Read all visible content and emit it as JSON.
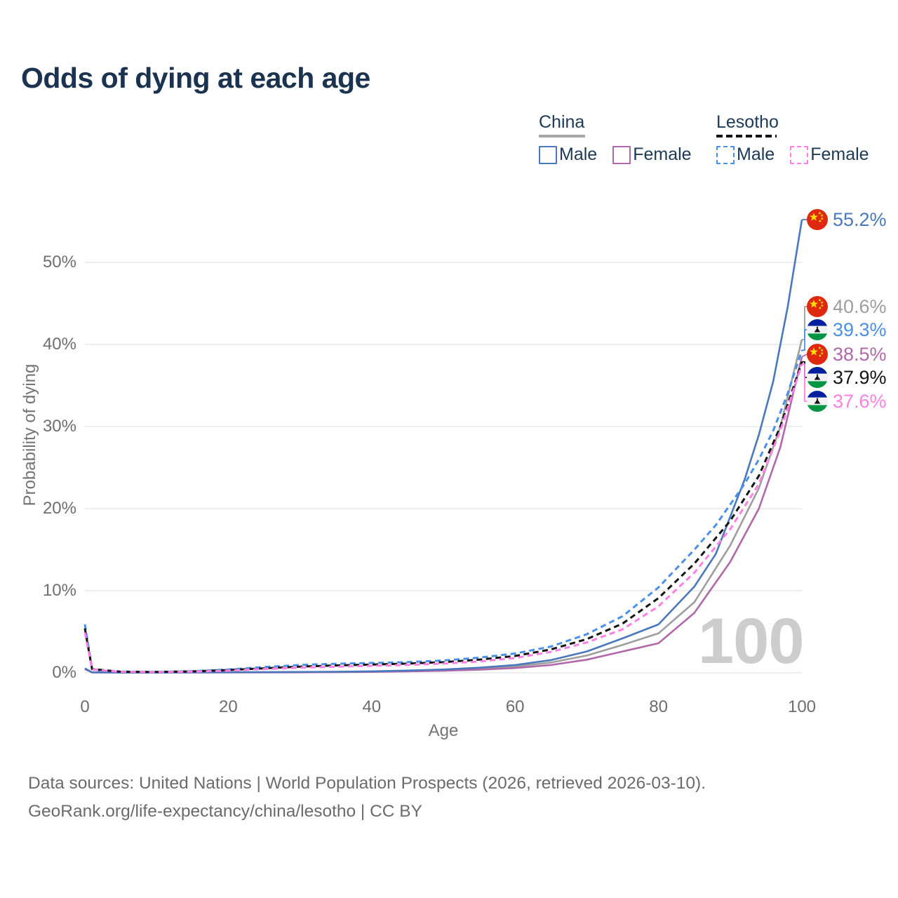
{
  "title": "Odds of dying at each age",
  "legend": {
    "groups": [
      {
        "label": "China",
        "line_style": "solid",
        "line_color": "#a8a8a8",
        "items": [
          {
            "label": "Male",
            "color": "#4a78bc"
          },
          {
            "label": "Female",
            "color": "#b168ab"
          }
        ]
      },
      {
        "label": "Lesotho",
        "line_style": "dashed",
        "line_color": "#141414",
        "items": [
          {
            "label": "Male",
            "color": "#4a90e8"
          },
          {
            "label": "Female",
            "color": "#ff80e5"
          }
        ]
      }
    ]
  },
  "axes": {
    "x": {
      "label": "Age",
      "ticks": [
        "0",
        "20",
        "40",
        "60",
        "80",
        "100"
      ]
    },
    "y": {
      "label": "Probability of dying",
      "ticks": [
        "0%",
        "10%",
        "20%",
        "30%",
        "40%",
        "50%"
      ]
    }
  },
  "watermark": "100",
  "end_labels": [
    {
      "value": "55.2%",
      "pct": 55.2,
      "flag": "china",
      "color": "#4a78bc"
    },
    {
      "value": "40.6%",
      "pct": 40.6,
      "flag": "china",
      "color": "#9e9e9e"
    },
    {
      "value": "39.3%",
      "pct": 39.3,
      "flag": "lesotho",
      "color": "#4a90e8"
    },
    {
      "value": "38.5%",
      "pct": 38.5,
      "flag": "china",
      "color": "#b168ab"
    },
    {
      "value": "37.9%",
      "pct": 37.9,
      "flag": "lesotho",
      "color": "#141414"
    },
    {
      "value": "37.6%",
      "pct": 37.6,
      "flag": "lesotho",
      "color": "#ff80e5"
    }
  ],
  "footer": {
    "line1": "Data sources: United Nations | World Population Prospects (2026, retrieved 2026-03-10).",
    "line2": "GeoRank.org/life-expectancy/china/lesotho | CC BY"
  },
  "chart_data": {
    "type": "line",
    "title": "Odds of dying at each age",
    "xlabel": "Age",
    "ylabel": "Probability of dying",
    "xlim": [
      0,
      100
    ],
    "ylim": [
      0,
      57
    ],
    "xticks": [
      0,
      20,
      40,
      60,
      80,
      100
    ],
    "yticks": [
      0,
      10,
      20,
      30,
      40,
      50
    ],
    "grid": "horizontal",
    "legend_position": "top-right",
    "unit": "%",
    "series": [
      {
        "name": "China Both sexes",
        "country": "China",
        "sex": "both",
        "color": "#9e9e9e",
        "dash": false,
        "end_value": 40.6,
        "points": [
          [
            0,
            0.5
          ],
          [
            1,
            0.05
          ],
          [
            5,
            0.03
          ],
          [
            10,
            0.03
          ],
          [
            15,
            0.04
          ],
          [
            20,
            0.06
          ],
          [
            25,
            0.07
          ],
          [
            30,
            0.09
          ],
          [
            35,
            0.11
          ],
          [
            40,
            0.15
          ],
          [
            45,
            0.22
          ],
          [
            50,
            0.33
          ],
          [
            55,
            0.5
          ],
          [
            60,
            0.78
          ],
          [
            65,
            1.25
          ],
          [
            70,
            2.1
          ],
          [
            75,
            3.4
          ],
          [
            80,
            4.8
          ],
          [
            85,
            8.6
          ],
          [
            90,
            15.5
          ],
          [
            94,
            22.5
          ],
          [
            97,
            30.0
          ],
          [
            100,
            40.6
          ]
        ]
      },
      {
        "name": "China Female",
        "country": "China",
        "sex": "female",
        "color": "#b168ab",
        "dash": false,
        "end_value": 38.5,
        "points": [
          [
            0,
            0.45
          ],
          [
            1,
            0.05
          ],
          [
            5,
            0.02
          ],
          [
            10,
            0.02
          ],
          [
            15,
            0.03
          ],
          [
            20,
            0.04
          ],
          [
            25,
            0.05
          ],
          [
            30,
            0.06
          ],
          [
            35,
            0.08
          ],
          [
            40,
            0.11
          ],
          [
            45,
            0.17
          ],
          [
            50,
            0.25
          ],
          [
            55,
            0.38
          ],
          [
            60,
            0.58
          ],
          [
            65,
            0.95
          ],
          [
            70,
            1.6
          ],
          [
            75,
            2.6
          ],
          [
            80,
            3.6
          ],
          [
            85,
            7.3
          ],
          [
            90,
            13.5
          ],
          [
            94,
            20.0
          ],
          [
            97,
            27.5
          ],
          [
            100,
            38.5
          ]
        ]
      },
      {
        "name": "China Male",
        "country": "China",
        "sex": "male",
        "color": "#4a78bc",
        "dash": false,
        "end_value": 55.2,
        "points": [
          [
            0,
            0.55
          ],
          [
            1,
            0.06
          ],
          [
            5,
            0.03
          ],
          [
            10,
            0.03
          ],
          [
            15,
            0.05
          ],
          [
            20,
            0.07
          ],
          [
            25,
            0.08
          ],
          [
            30,
            0.1
          ],
          [
            35,
            0.13
          ],
          [
            40,
            0.18
          ],
          [
            45,
            0.27
          ],
          [
            50,
            0.4
          ],
          [
            55,
            0.62
          ],
          [
            60,
            0.95
          ],
          [
            65,
            1.55
          ],
          [
            70,
            2.6
          ],
          [
            75,
            4.2
          ],
          [
            80,
            5.9
          ],
          [
            85,
            10.5
          ],
          [
            88,
            14.5
          ],
          [
            90,
            19.0
          ],
          [
            92,
            23.5
          ],
          [
            94,
            29.0
          ],
          [
            96,
            35.5
          ],
          [
            98,
            44.5
          ],
          [
            100,
            55.2
          ]
        ]
      },
      {
        "name": "Lesotho Male",
        "country": "Lesotho",
        "sex": "male",
        "color": "#4a90e8",
        "dash": true,
        "end_value": 39.3,
        "points": [
          [
            0,
            5.9
          ],
          [
            1,
            0.5
          ],
          [
            2,
            0.3
          ],
          [
            5,
            0.15
          ],
          [
            10,
            0.12
          ],
          [
            15,
            0.2
          ],
          [
            20,
            0.4
          ],
          [
            25,
            0.7
          ],
          [
            30,
            0.95
          ],
          [
            35,
            1.1
          ],
          [
            40,
            1.2
          ],
          [
            45,
            1.3
          ],
          [
            50,
            1.5
          ],
          [
            55,
            1.85
          ],
          [
            60,
            2.35
          ],
          [
            65,
            3.2
          ],
          [
            70,
            4.7
          ],
          [
            75,
            6.9
          ],
          [
            80,
            10.4
          ],
          [
            85,
            15.0
          ],
          [
            88,
            18.0
          ],
          [
            90,
            20.5
          ],
          [
            92,
            23.0
          ],
          [
            94,
            26.0
          ],
          [
            96,
            29.5
          ],
          [
            98,
            34.0
          ],
          [
            100,
            39.3
          ]
        ]
      },
      {
        "name": "Lesotho Both sexes",
        "country": "Lesotho",
        "sex": "both",
        "color": "#141414",
        "dash": true,
        "end_value": 37.9,
        "points": [
          [
            0,
            5.4
          ],
          [
            1,
            0.45
          ],
          [
            5,
            0.13
          ],
          [
            10,
            0.1
          ],
          [
            15,
            0.17
          ],
          [
            20,
            0.33
          ],
          [
            25,
            0.55
          ],
          [
            30,
            0.75
          ],
          [
            35,
            0.9
          ],
          [
            40,
            1.0
          ],
          [
            45,
            1.12
          ],
          [
            50,
            1.3
          ],
          [
            55,
            1.6
          ],
          [
            60,
            2.05
          ],
          [
            65,
            2.85
          ],
          [
            70,
            4.1
          ],
          [
            75,
            6.0
          ],
          [
            80,
            9.1
          ],
          [
            85,
            13.3
          ],
          [
            90,
            18.5
          ],
          [
            94,
            24.0
          ],
          [
            97,
            30.0
          ],
          [
            100,
            37.9
          ]
        ]
      },
      {
        "name": "Lesotho Female",
        "country": "Lesotho",
        "sex": "female",
        "color": "#ff80e5",
        "dash": true,
        "end_value": 37.6,
        "points": [
          [
            0,
            4.9
          ],
          [
            1,
            0.4
          ],
          [
            5,
            0.12
          ],
          [
            10,
            0.09
          ],
          [
            15,
            0.14
          ],
          [
            20,
            0.26
          ],
          [
            25,
            0.45
          ],
          [
            30,
            0.62
          ],
          [
            35,
            0.74
          ],
          [
            40,
            0.85
          ],
          [
            45,
            0.97
          ],
          [
            50,
            1.12
          ],
          [
            55,
            1.38
          ],
          [
            60,
            1.8
          ],
          [
            65,
            2.55
          ],
          [
            70,
            3.7
          ],
          [
            75,
            5.3
          ],
          [
            80,
            8.1
          ],
          [
            85,
            12.2
          ],
          [
            90,
            17.5
          ],
          [
            94,
            23.0
          ],
          [
            97,
            29.5
          ],
          [
            100,
            37.6
          ]
        ]
      }
    ]
  }
}
